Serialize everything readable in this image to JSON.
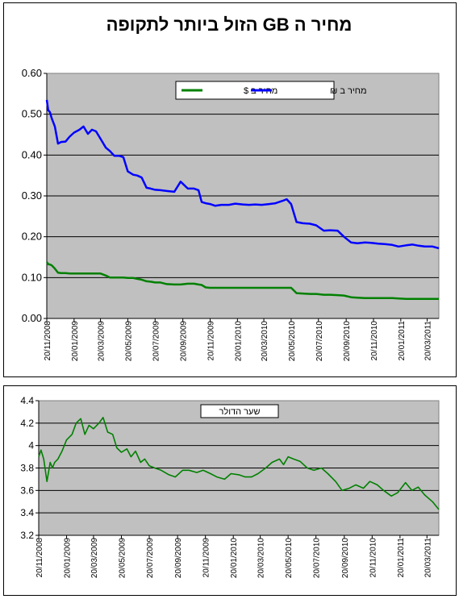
{
  "chart_data": [
    {
      "type": "line",
      "title": "מחיר ה GB הזול ביותר לתקופה",
      "ylim": [
        0,
        0.6
      ],
      "yticks": [
        "0.00",
        "0.10",
        "0.20",
        "0.30",
        "0.40",
        "0.50",
        "0.60"
      ],
      "grid": true,
      "legend": "top-right",
      "x_ticks": [
        "20/11/2008",
        "20/01/2009",
        "20/03/2009",
        "20/05/2009",
        "20/07/2009",
        "20/09/2009",
        "20/11/2009",
        "20/01/2010",
        "20/03/2010",
        "20/05/2010",
        "20/07/2010",
        "20/09/2010",
        "20/11/2010",
        "20/01/2011",
        "20/03/2011"
      ],
      "x": [
        "2008-11-20",
        "2008-11-23",
        "2008-11-27",
        "2008-12-01",
        "2008-12-08",
        "2008-12-15",
        "2008-12-22",
        "2009-01-01",
        "2009-01-10",
        "2009-01-20",
        "2009-02-01",
        "2009-02-10",
        "2009-02-20",
        "2009-03-01",
        "2009-03-10",
        "2009-03-20",
        "2009-04-01",
        "2009-04-10",
        "2009-04-20",
        "2009-05-01",
        "2009-05-10",
        "2009-05-20",
        "2009-06-01",
        "2009-06-10",
        "2009-06-20",
        "2009-07-01",
        "2009-07-10",
        "2009-07-20",
        "2009-08-01",
        "2009-08-15",
        "2009-09-01",
        "2009-09-15",
        "2009-10-01",
        "2009-10-15",
        "2009-10-25",
        "2009-11-01",
        "2009-11-10",
        "2009-11-20",
        "2009-12-01",
        "2009-12-15",
        "2010-01-01",
        "2010-01-15",
        "2010-02-01",
        "2010-02-15",
        "2010-03-01",
        "2010-03-15",
        "2010-04-01",
        "2010-04-15",
        "2010-05-01",
        "2010-05-10",
        "2010-05-20",
        "2010-06-01",
        "2010-06-15",
        "2010-07-01",
        "2010-07-15",
        "2010-08-01",
        "2010-08-15",
        "2010-09-01",
        "2010-09-15",
        "2010-10-01",
        "2010-10-15",
        "2010-11-01",
        "2010-11-15",
        "2010-12-01",
        "2010-12-15",
        "2011-01-01",
        "2011-01-15",
        "2011-02-01",
        "2011-02-15",
        "2011-03-01",
        "2011-03-15",
        "2011-04-01",
        "2011-04-15"
      ],
      "series": [
        {
          "name": "מחיר ב ₪",
          "color": "#0000ff",
          "values": [
            0.535,
            0.51,
            0.505,
            0.49,
            0.47,
            0.428,
            0.432,
            0.433,
            0.445,
            0.455,
            0.462,
            0.47,
            0.452,
            0.462,
            0.458,
            0.44,
            0.418,
            0.41,
            0.398,
            0.398,
            0.395,
            0.36,
            0.352,
            0.35,
            0.345,
            0.32,
            0.318,
            0.315,
            0.314,
            0.312,
            0.31,
            0.335,
            0.318,
            0.318,
            0.314,
            0.285,
            0.282,
            0.28,
            0.276,
            0.278,
            0.278,
            0.281,
            0.279,
            0.278,
            0.279,
            0.278,
            0.28,
            0.282,
            0.288,
            0.292,
            0.28,
            0.236,
            0.233,
            0.232,
            0.228,
            0.215,
            0.216,
            0.215,
            0.2,
            0.186,
            0.184,
            0.186,
            0.185,
            0.183,
            0.182,
            0.18,
            0.176,
            0.179,
            0.181,
            0.178,
            0.176,
            0.176,
            0.172
          ]
        },
        {
          "name": "מחיר ב $",
          "color": "#008000",
          "values": [
            0.138,
            0.133,
            0.132,
            0.13,
            0.122,
            0.112,
            0.111,
            0.111,
            0.11,
            0.11,
            0.11,
            0.11,
            0.11,
            0.11,
            0.11,
            0.11,
            0.105,
            0.1,
            0.1,
            0.1,
            0.1,
            0.099,
            0.099,
            0.097,
            0.095,
            0.091,
            0.09,
            0.088,
            0.088,
            0.084,
            0.083,
            0.083,
            0.085,
            0.085,
            0.083,
            0.082,
            0.076,
            0.075,
            0.075,
            0.075,
            0.075,
            0.075,
            0.075,
            0.075,
            0.075,
            0.075,
            0.075,
            0.075,
            0.075,
            0.075,
            0.075,
            0.062,
            0.061,
            0.06,
            0.06,
            0.058,
            0.058,
            0.057,
            0.056,
            0.052,
            0.051,
            0.05,
            0.05,
            0.05,
            0.05,
            0.05,
            0.049,
            0.048,
            0.048,
            0.048,
            0.048,
            0.048,
            0.048
          ]
        }
      ]
    },
    {
      "type": "line",
      "title": "שער הדולר",
      "ylim": [
        3.2,
        4.4
      ],
      "yticks": [
        "3.2",
        "3.4",
        "3.6",
        "3.8",
        "4",
        "4.2",
        "4.4"
      ],
      "grid": true,
      "legend": "top",
      "x_ticks": [
        "20/11/2008",
        "20/01/2009",
        "20/03/2009",
        "20/05/2009",
        "20/07/2009",
        "20/09/2009",
        "20/11/2009",
        "20/01/2010",
        "20/03/2010",
        "20/05/2010",
        "20/07/2010",
        "20/09/2010",
        "20/11/2010",
        "20/01/2011",
        "20/03/2011"
      ],
      "x": [
        "2008-11-20",
        "2008-11-25",
        "2008-12-01",
        "2008-12-08",
        "2008-12-15",
        "2008-12-20",
        "2008-12-25",
        "2009-01-01",
        "2009-01-10",
        "2009-01-20",
        "2009-02-01",
        "2009-02-10",
        "2009-02-20",
        "2009-03-01",
        "2009-03-10",
        "2009-03-20",
        "2009-04-01",
        "2009-04-10",
        "2009-04-20",
        "2009-05-01",
        "2009-05-10",
        "2009-05-20",
        "2009-06-01",
        "2009-06-10",
        "2009-06-20",
        "2009-07-01",
        "2009-07-10",
        "2009-07-20",
        "2009-08-01",
        "2009-08-15",
        "2009-09-01",
        "2009-09-15",
        "2009-10-01",
        "2009-10-15",
        "2009-11-01",
        "2009-11-15",
        "2009-12-01",
        "2009-12-15",
        "2010-01-01",
        "2010-01-15",
        "2010-02-01",
        "2010-02-15",
        "2010-03-01",
        "2010-03-15",
        "2010-04-01",
        "2010-04-15",
        "2010-05-01",
        "2010-05-10",
        "2010-05-20",
        "2010-06-01",
        "2010-06-15",
        "2010-07-01",
        "2010-07-15",
        "2010-08-01",
        "2010-08-15",
        "2010-09-01",
        "2010-09-15",
        "2010-10-01",
        "2010-10-15",
        "2010-11-01",
        "2010-11-15",
        "2010-12-01",
        "2010-12-15",
        "2011-01-01",
        "2011-01-15",
        "2011-02-01",
        "2011-02-15",
        "2011-03-01",
        "2011-03-15",
        "2011-04-01",
        "2011-04-15"
      ],
      "series": [
        {
          "name": "שער הדולר",
          "color": "#008000",
          "values": [
            3.9,
            3.96,
            3.88,
            3.68,
            3.85,
            3.8,
            3.85,
            3.88,
            3.95,
            4.05,
            4.1,
            4.2,
            4.24,
            4.1,
            4.18,
            4.15,
            4.2,
            4.25,
            4.12,
            4.1,
            3.98,
            3.94,
            3.97,
            3.9,
            3.95,
            3.85,
            3.88,
            3.82,
            3.8,
            3.78,
            3.74,
            3.72,
            3.78,
            3.78,
            3.76,
            3.78,
            3.75,
            3.72,
            3.7,
            3.75,
            3.74,
            3.72,
            3.72,
            3.75,
            3.8,
            3.85,
            3.88,
            3.83,
            3.9,
            3.88,
            3.86,
            3.8,
            3.78,
            3.8,
            3.75,
            3.68,
            3.6,
            3.62,
            3.65,
            3.62,
            3.68,
            3.65,
            3.6,
            3.55,
            3.58,
            3.67,
            3.6,
            3.63,
            3.56,
            3.5,
            3.43
          ]
        }
      ]
    }
  ]
}
